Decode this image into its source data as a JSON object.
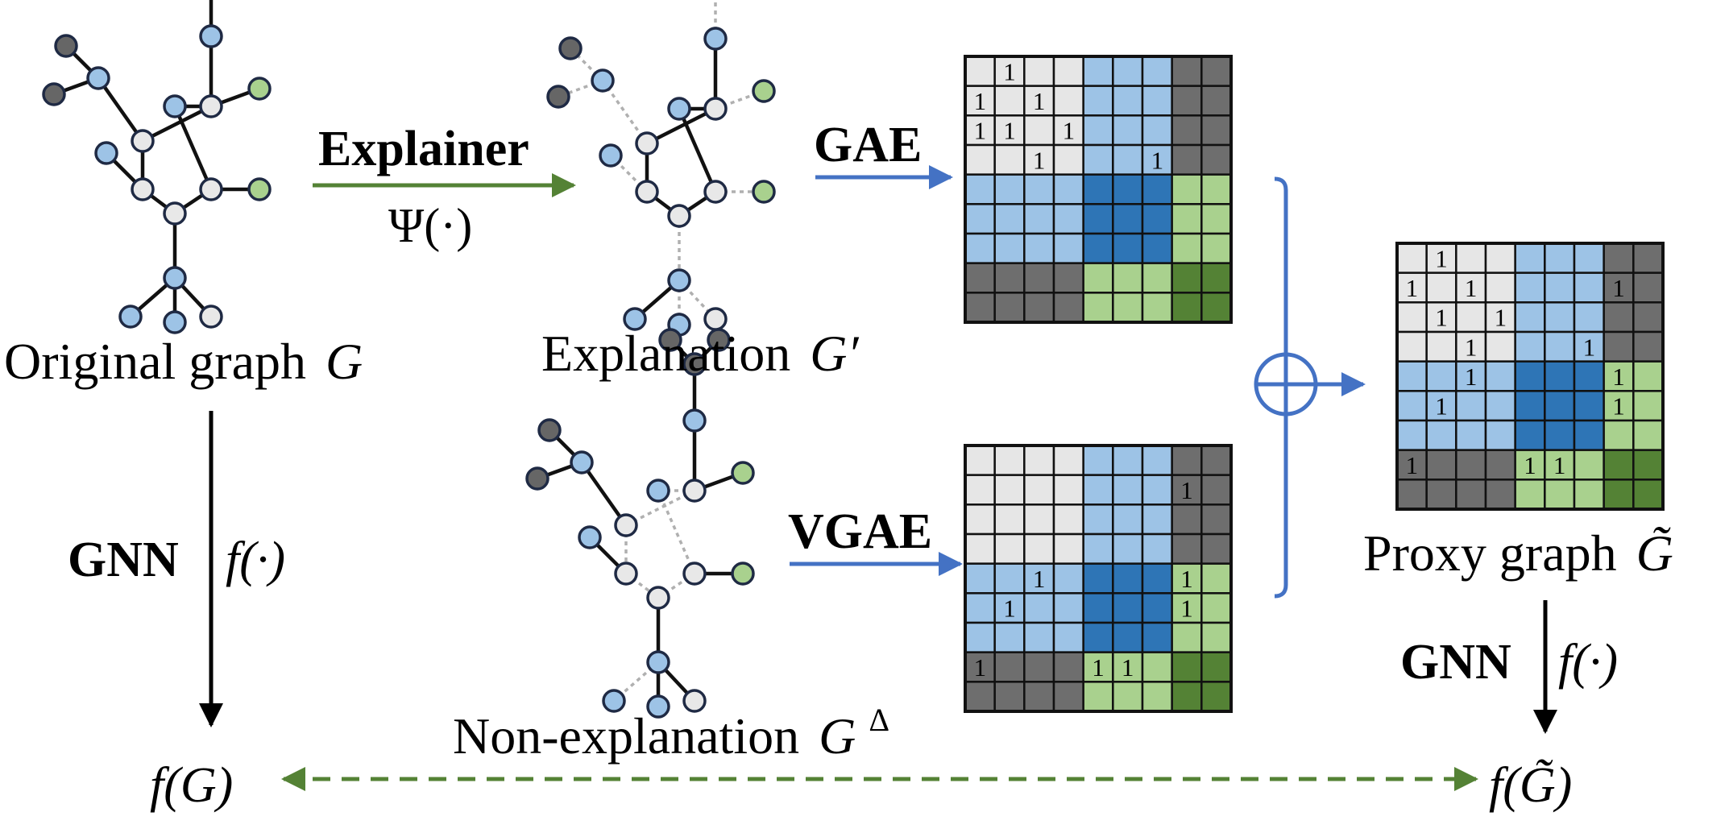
{
  "labels": {
    "original_graph": "Original graph",
    "original_symbol": "G",
    "explanation": "Explanation",
    "explanation_symbol": "G′",
    "non_explanation": "Non-explanation",
    "non_explanation_symbol": "G",
    "non_explanation_sup": "Δ",
    "proxy_graph": "Proxy graph",
    "proxy_symbol": "G̃",
    "explainer": "Explainer",
    "psi": "Ψ(·)",
    "gae": "GAE",
    "vgae": "VGAE",
    "gnn_left": "GNN",
    "f_left": "f(·)",
    "gnn_right": "GNN",
    "f_right": "f(·)",
    "f_G": "f(G)",
    "f_Gtilde": "f(G̃)",
    "oplus": "⊕"
  },
  "matrix_cell_text": "1",
  "colors": {
    "light_gray": "#e6e6e6",
    "dark_gray": "#6e6e6e",
    "light_blue": "#9dc3e6",
    "dark_blue": "#2e75b6",
    "light_green": "#a9d18e",
    "dark_green": "#548235",
    "node_blue": "#9dc3e6",
    "node_gray": "#e8e8e8",
    "node_dark": "#666666",
    "node_green": "#a9d18e",
    "arrow_blue": "#4472c4",
    "arrow_green": "#548235",
    "node_stroke": "#1f2a44"
  }
}
